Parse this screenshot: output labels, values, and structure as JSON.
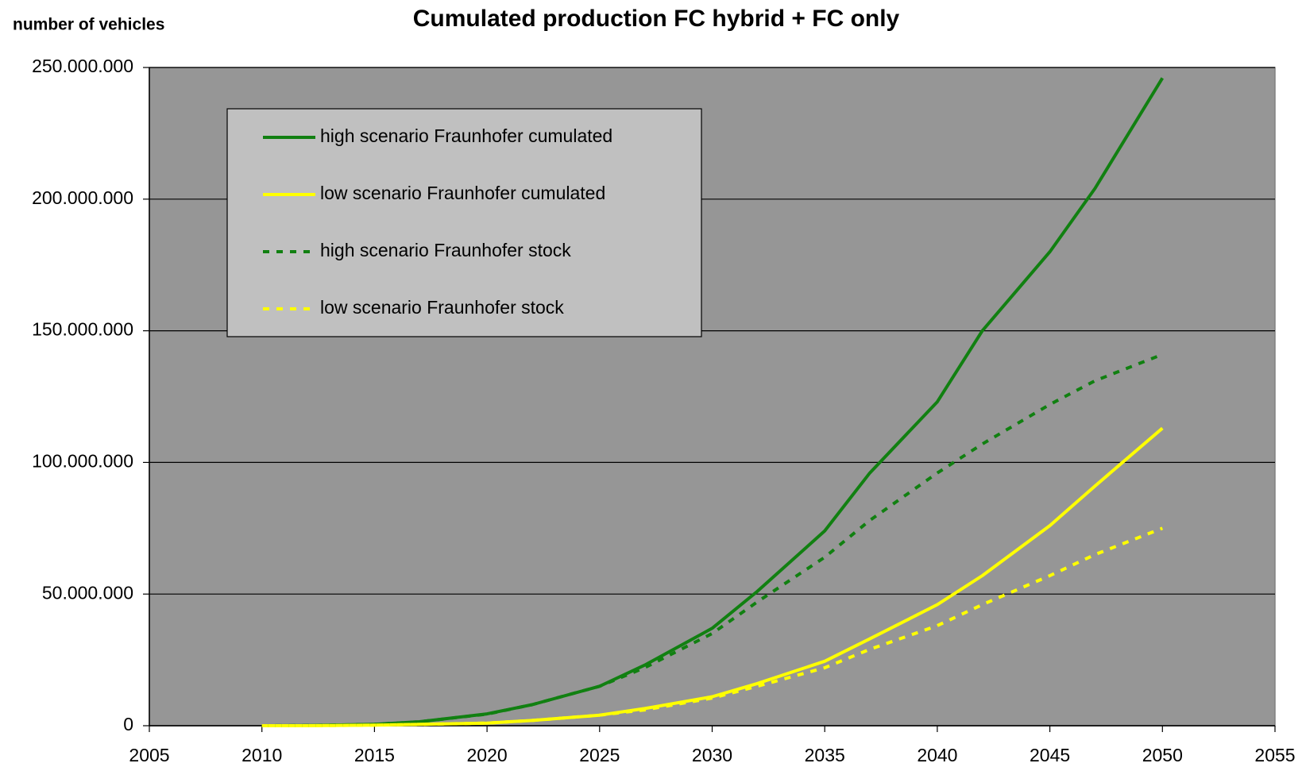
{
  "chart_data": {
    "type": "line",
    "title": "Cumulated production FC hybrid + FC only",
    "y_label": "number of vehicles",
    "x": [
      2010,
      2012,
      2015,
      2017,
      2020,
      2022,
      2025,
      2027,
      2030,
      2032,
      2035,
      2037,
      2040,
      2042,
      2045,
      2047,
      2050
    ],
    "series": [
      {
        "name": "high scenario Fraunhofer cumulated",
        "color": "#118011",
        "style": "solid",
        "values": [
          0,
          100000,
          500000,
          1500000,
          4500000,
          8000000,
          15000000,
          23000000,
          37000000,
          51000000,
          74000000,
          96000000,
          123000000,
          150000000,
          180000000,
          204000000,
          246000000
        ]
      },
      {
        "name": "low scenario Fraunhofer cumulated",
        "color": "#ffff00",
        "style": "solid",
        "values": [
          0,
          0,
          200000,
          500000,
          1000000,
          2000000,
          4000000,
          6500000,
          11000000,
          16000000,
          24500000,
          33000000,
          46000000,
          57000000,
          76000000,
          91000000,
          113000000
        ]
      },
      {
        "name": "high scenario Fraunhofer stock",
        "color": "#118011",
        "style": "dashed",
        "values": [
          0,
          100000,
          500000,
          1500000,
          4400000,
          8000000,
          15000000,
          22000000,
          35000000,
          47000000,
          64000000,
          78000000,
          96000000,
          107000000,
          122000000,
          131000000,
          141000000
        ]
      },
      {
        "name": "low scenario Fraunhofer stock",
        "color": "#ffff00",
        "style": "dashed",
        "values": [
          0,
          0,
          200000,
          500000,
          1000000,
          2000000,
          4000000,
          6000000,
          10500000,
          15000000,
          22000000,
          29000000,
          38000000,
          46000000,
          57000000,
          65000000,
          75000000
        ]
      }
    ],
    "xlim": [
      2005,
      2055
    ],
    "xticks": [
      2005,
      2010,
      2015,
      2020,
      2025,
      2030,
      2035,
      2040,
      2045,
      2050,
      2055
    ],
    "ylim": [
      0,
      250000000
    ],
    "yticks": [
      0,
      {
        "value": 50000000,
        "label": "50.000.000"
      },
      {
        "value": 100000000,
        "label": "100.000.000"
      },
      {
        "value": 150000000,
        "label": "150.000.000"
      },
      {
        "value": 200000000,
        "label": "200.000.000"
      },
      {
        "value": 250000000,
        "label": "250.000.000"
      }
    ],
    "grid": true,
    "plot_background": "#969696",
    "legend": "upper left"
  }
}
